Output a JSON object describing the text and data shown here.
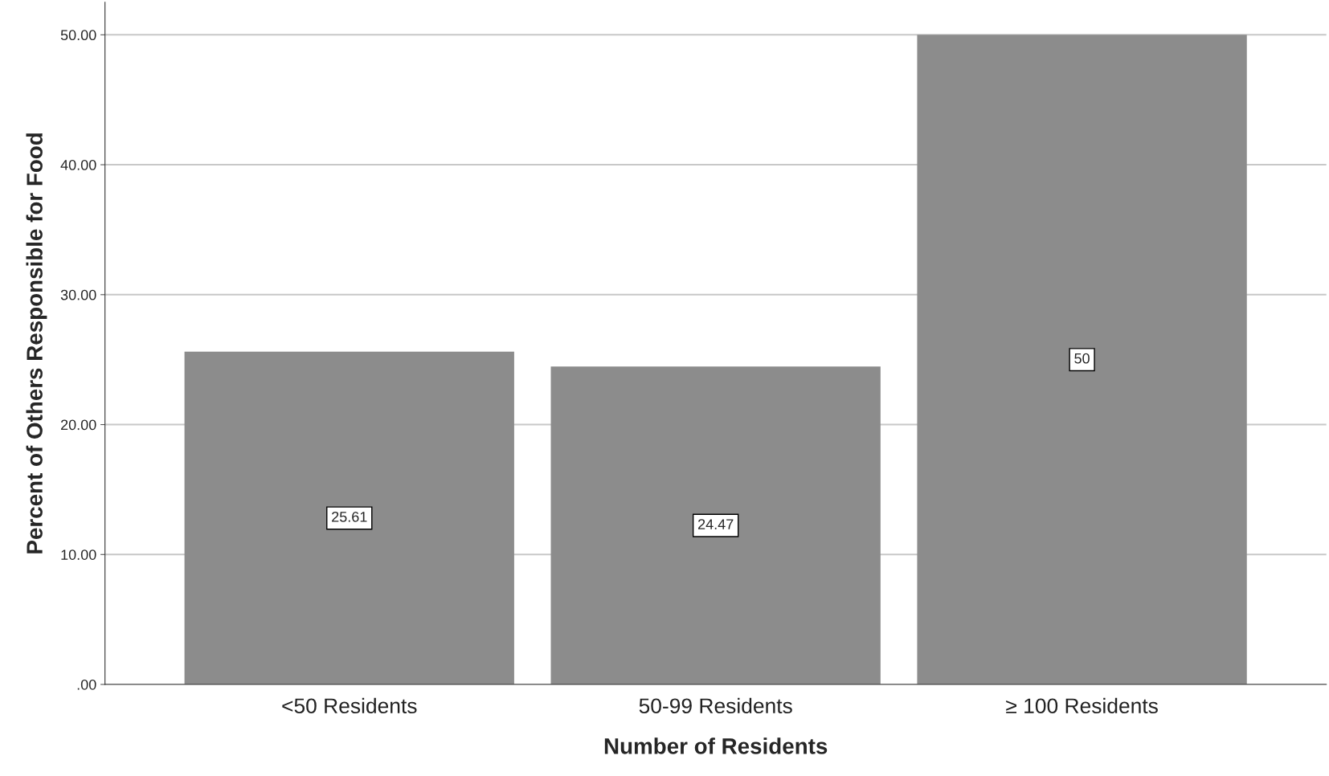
{
  "chart_data": {
    "type": "bar",
    "xlabel": "Number of Residents",
    "ylabel": "Percent of Others Responsible for Food",
    "categories": [
      "<50 Residents",
      "50-99 Residents",
      "≥ 100 Residents"
    ],
    "values": [
      25.61,
      24.47,
      50
    ],
    "color": "#8c8c8c",
    "ylim": [
      0,
      52.5
    ],
    "yticks": [
      {
        "value": 0,
        "label": ".00"
      },
      {
        "value": 10,
        "label": "10.00"
      },
      {
        "value": 20,
        "label": "20.00"
      },
      {
        "value": 30,
        "label": "30.00"
      },
      {
        "value": 40,
        "label": "40.00"
      },
      {
        "value": 50,
        "label": "50.00"
      }
    ],
    "grid": "y",
    "data_labels": true
  }
}
